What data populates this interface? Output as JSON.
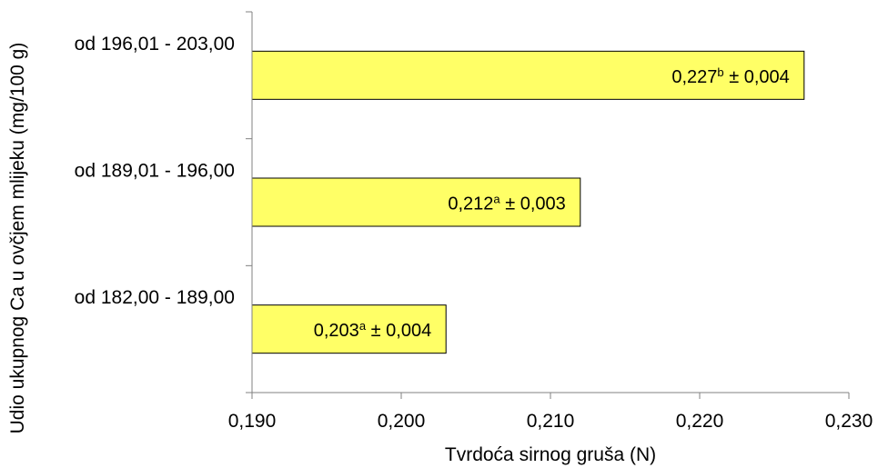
{
  "chart_data": {
    "type": "bar",
    "orientation": "horizontal",
    "xlabel": "Tvrdoća sirnog gruša (N)",
    "ylabel": "Udio ukupnog Ca  u ovčjem mlijeku (mg/100 g)",
    "xlim": [
      0.19,
      0.23
    ],
    "x_ticks": [
      0.19,
      0.2,
      0.21,
      0.22,
      0.23
    ],
    "x_tick_labels": [
      "0,190",
      "0,200",
      "0,210",
      "0,220",
      "0,230"
    ],
    "grid": false,
    "bar_color": "#FFFF66",
    "categories": [
      "od 196,01 - 203,00",
      "od 189,01 - 196,00",
      "od 182,00 - 189,00"
    ],
    "values": [
      0.227,
      0.212,
      0.203
    ],
    "labels": [
      {
        "value": "0,227",
        "sup": "b",
        "err": " ± 0,004"
      },
      {
        "value": "0,212",
        "sup": "a",
        "err": " ± 0,003"
      },
      {
        "value": "0,203",
        "sup": "a",
        "err": " ± 0,004"
      }
    ]
  }
}
